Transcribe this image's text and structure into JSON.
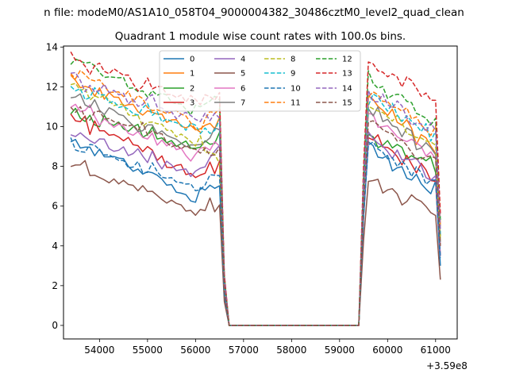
{
  "chart_data": {
    "type": "line",
    "suptitle": "n file: modeM0/AS1A10_058T04_9000004382_30486cztM0_level2_quad_clean",
    "title": "Quadrant 1 module wise count rates with 100.0s bins.",
    "xlabel": "",
    "ylabel": "",
    "x_offset_label": "+3.59e8",
    "xlim": [
      53250,
      61450
    ],
    "ylim": [
      -0.68,
      14.05
    ],
    "xticks": [
      54000,
      55000,
      56000,
      57000,
      58000,
      59000,
      60000,
      61000
    ],
    "xtick_labels": [
      "54000",
      "55000",
      "56000",
      "57000",
      "58000",
      "59000",
      "60000",
      "61000"
    ],
    "yticks": [
      0,
      2,
      4,
      6,
      8,
      10,
      12,
      14
    ],
    "ytick_labels": [
      "0",
      "2",
      "4",
      "6",
      "8",
      "10",
      "12",
      "14"
    ],
    "legend_position": "upper center",
    "segments": {
      "seg1": [
        53400,
        56500
      ],
      "seg1_step": 100,
      "drop_x": [
        56600,
        56700
      ],
      "flat": [
        56700,
        59400
      ],
      "seg2_start": 59500,
      "seg2": [
        59600,
        60900
      ],
      "seg2_step": 100,
      "tail_x": 61000,
      "end_x": 61100
    },
    "series": [
      {
        "name": "0",
        "color": "#1f77b4",
        "style": "solid",
        "start": 9.5,
        "end": 6.3,
        "late2": 7.1,
        "drop": 1.5,
        "s2_start": 9.0,
        "s2_end": 6.9,
        "tail": 3.0
      },
      {
        "name": "1",
        "color": "#ff7f0e",
        "style": "solid",
        "start": 12.3,
        "end": 9.8,
        "late2": 10.3,
        "drop": 2.4,
        "s2_start": 11.4,
        "s2_end": 9.0,
        "tail": 5.0
      },
      {
        "name": "2",
        "color": "#2ca02c",
        "style": "solid",
        "start": 10.8,
        "end": 8.8,
        "late2": 9.6,
        "drop": 2.0,
        "s2_start": 9.6,
        "s2_end": 8.0,
        "tail": 4.5
      },
      {
        "name": "3",
        "color": "#d62728",
        "style": "solid",
        "start": 10.6,
        "end": 7.5,
        "late2": 8.1,
        "drop": 1.8,
        "s2_start": 9.8,
        "s2_end": 7.4,
        "tail": 3.5
      },
      {
        "name": "4",
        "color": "#9467bd",
        "style": "solid",
        "start": 9.7,
        "end": 7.6,
        "late2": 8.9,
        "drop": 1.8,
        "s2_start": 9.5,
        "s2_end": 7.5,
        "tail": 3.5
      },
      {
        "name": "5",
        "color": "#8c564b",
        "style": "solid",
        "start": 8.1,
        "end": 5.8,
        "late2": 6.1,
        "drop": 1.2,
        "s2_start": 7.1,
        "s2_end": 5.8,
        "tail": 2.3
      },
      {
        "name": "6",
        "color": "#e377c2",
        "style": "solid",
        "start": 10.9,
        "end": 8.5,
        "late2": 9.3,
        "drop": 1.9,
        "s2_start": 10.6,
        "s2_end": 8.5,
        "tail": 4.0
      },
      {
        "name": "7",
        "color": "#7f7f7f",
        "style": "solid",
        "start": 11.6,
        "end": 9.0,
        "late2": 10.0,
        "drop": 2.1,
        "s2_start": 11.0,
        "s2_end": 8.8,
        "tail": 4.2
      },
      {
        "name": "8",
        "color": "#bcbd22",
        "style": "dashed",
        "start": 12.1,
        "end": 9.2,
        "late2": 8.4,
        "drop": 2.0,
        "s2_start": 11.2,
        "s2_end": 9.0,
        "tail": 4.3
      },
      {
        "name": "9",
        "color": "#17becf",
        "style": "dashed",
        "start": 12.0,
        "end": 9.8,
        "late2": 10.1,
        "drop": 2.2,
        "s2_start": 11.5,
        "s2_end": 9.6,
        "tail": 4.6
      },
      {
        "name": "10",
        "color": "#1f77b4",
        "style": "dashed",
        "start": 9.2,
        "end": 7.0,
        "late2": 7.6,
        "drop": 1.6,
        "s2_start": 9.1,
        "s2_end": 7.2,
        "tail": 3.4
      },
      {
        "name": "11",
        "color": "#ff7f0e",
        "style": "dashed",
        "start": 12.6,
        "end": 10.2,
        "late2": 10.6,
        "drop": 2.4,
        "s2_start": 11.8,
        "s2_end": 9.8,
        "tail": 5.0
      },
      {
        "name": "12",
        "color": "#2ca02c",
        "style": "dashed",
        "start": 13.3,
        "end": 10.8,
        "late2": 11.2,
        "drop": 2.5,
        "s2_start": 12.4,
        "s2_end": 10.3,
        "tail": 5.3
      },
      {
        "name": "13",
        "color": "#d62728",
        "style": "dashed",
        "start": 13.5,
        "end": 11.2,
        "late2": 11.6,
        "drop": 2.6,
        "s2_start": 13.3,
        "s2_end": 11.4,
        "tail": 5.6
      },
      {
        "name": "14",
        "color": "#9467bd",
        "style": "dashed",
        "start": 12.4,
        "end": 10.3,
        "late2": 10.7,
        "drop": 2.3,
        "s2_start": 11.8,
        "s2_end": 9.8,
        "tail": 4.8
      },
      {
        "name": "15",
        "color": "#8c564b",
        "style": "dashed",
        "start": 11.0,
        "end": 8.7,
        "late2": 9.0,
        "drop": 1.9,
        "s2_start": 10.2,
        "s2_end": 8.3,
        "tail": 4.0
      }
    ]
  }
}
